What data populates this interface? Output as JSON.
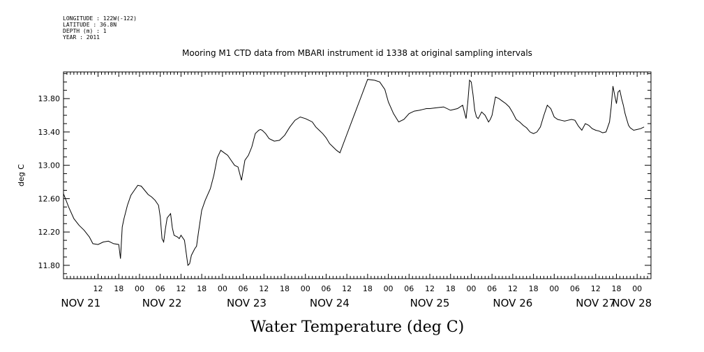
{
  "metadata": {
    "longitude": "LONGITUDE : 122W(-122)",
    "latitude": "LATITUDE : 36.8N",
    "depth": "DEPTH (m) : 1",
    "year": "YEAR : 2011"
  },
  "chart_data": {
    "type": "line",
    "title": "Mooring M1 CTD data from MBARI instrument id 1338 at original sampling intervals",
    "xlabel": "Water Temperature (deg C)",
    "ylabel": "deg C",
    "ylim": [
      11.64,
      14.12
    ],
    "xlim_hours_from_nov21_00": [
      2.0,
      172.0
    ],
    "yticks": [
      11.8,
      12.2,
      12.6,
      13.0,
      13.4,
      13.8
    ],
    "ytick_labels": [
      "11.80",
      "12.20",
      "12.60",
      "13.00",
      "13.40",
      "13.80"
    ],
    "xticks_hours": [
      12,
      18,
      24,
      30,
      36,
      42,
      48,
      54,
      60,
      66,
      72,
      78,
      84,
      90,
      96,
      102,
      108,
      114,
      120,
      126,
      132,
      138,
      144,
      150,
      156,
      162,
      168
    ],
    "xtick_labels": [
      "12",
      "18",
      "00",
      "06",
      "12",
      "18",
      "00",
      "06",
      "12",
      "18",
      "00",
      "06",
      "12",
      "18",
      "00",
      "06",
      "12",
      "18",
      "00",
      "06",
      "12",
      "18",
      "00",
      "06",
      "12",
      "18",
      "00"
    ],
    "date_labels": [
      "NOV 21",
      "NOV 22",
      "NOV 23",
      "NOV 24",
      "NOV 25",
      "NOV 26",
      "NOV 27",
      "NOV 28"
    ],
    "date_label_hours": [
      7,
      30.5,
      55,
      79,
      108,
      132,
      156,
      166.5
    ],
    "grid": false,
    "series": [
      {
        "x": [
          2.0,
          3.5,
          5.0,
          6.5,
          8.0,
          9.5,
          10.5,
          12.0,
          13.5,
          15.0,
          16.5,
          18.0,
          18.5,
          19.0,
          19.5,
          20.5,
          21.5,
          22.5,
          23.5,
          24.5,
          25.5,
          26.5,
          27.5,
          28.5,
          29.5,
          30.0,
          30.5,
          31.0,
          31.5,
          32.0,
          33.0,
          33.5,
          34.0,
          35.0,
          35.5,
          36.0,
          37.0,
          38.0,
          38.5,
          39.0,
          40.0,
          40.5,
          41.0,
          42.0,
          43.0,
          44.5,
          45.5,
          46.5,
          47.5,
          48.5,
          49.5,
          50.5,
          51.5,
          52.5,
          53.5,
          54.5,
          55.5,
          56.5,
          57.5,
          58.5,
          59.0,
          59.5,
          60.5,
          61.5,
          63.0,
          64.5,
          66.0,
          67.5,
          69.0,
          70.5,
          72.0,
          73.0,
          74.0,
          75.0,
          76.0,
          77.0,
          78.0,
          79.0,
          80.0,
          81.0,
          82.0,
          84.0,
          86.0,
          88.0,
          90.0,
          92.0,
          93.5,
          95.0,
          96.0,
          97.5,
          99.0,
          100.5,
          102.0,
          103.5,
          105.0,
          106.0,
          107.0,
          108.0,
          110.0,
          112.0,
          114.0,
          116.0,
          117.5,
          118.5,
          119.0,
          119.5,
          120.0,
          120.5,
          121.0,
          121.5,
          122.0,
          123.0,
          124.0,
          125.0,
          125.5,
          126.0,
          127.0,
          128.0,
          129.0,
          130.0,
          131.0,
          132.0,
          133.0,
          134.0,
          135.0,
          136.0,
          137.0,
          138.0,
          139.0,
          140.0,
          141.0,
          142.0,
          143.0,
          144.0,
          145.0,
          146.0,
          147.0,
          148.0,
          149.0,
          150.0,
          151.0,
          152.0,
          153.0,
          154.0,
          155.0,
          156.0,
          157.0,
          158.0,
          159.0,
          160.0,
          160.5,
          161.0,
          161.5,
          162.0,
          162.5,
          163.0,
          163.5,
          164.0,
          164.5,
          165.0,
          165.5,
          166.0,
          167.0,
          168.0,
          169.0,
          170.0
        ],
        "y": [
          12.66,
          12.5,
          12.36,
          12.28,
          12.22,
          12.14,
          12.06,
          12.05,
          12.08,
          12.09,
          12.06,
          12.05,
          11.88,
          12.26,
          12.36,
          12.52,
          12.64,
          12.7,
          12.76,
          12.75,
          12.7,
          12.65,
          12.62,
          12.58,
          12.52,
          12.38,
          12.12,
          12.08,
          12.24,
          12.37,
          12.42,
          12.25,
          12.16,
          12.14,
          12.12,
          12.16,
          12.1,
          11.8,
          11.82,
          11.92,
          12.0,
          12.03,
          12.18,
          12.46,
          12.58,
          12.72,
          12.88,
          13.09,
          13.18,
          13.15,
          13.12,
          13.06,
          13.0,
          12.98,
          12.82,
          13.06,
          13.12,
          13.22,
          13.38,
          13.42,
          13.43,
          13.42,
          13.38,
          13.32,
          13.29,
          13.3,
          13.36,
          13.46,
          13.54,
          13.58,
          13.56,
          13.54,
          13.52,
          13.46,
          13.42,
          13.38,
          13.33,
          13.26,
          13.22,
          13.18,
          13.15,
          13.37,
          13.59,
          13.81,
          14.03,
          14.02,
          14.0,
          13.91,
          13.76,
          13.62,
          13.52,
          13.55,
          13.62,
          13.65,
          13.66,
          13.67,
          13.68,
          13.68,
          13.69,
          13.7,
          13.66,
          13.68,
          13.72,
          13.56,
          13.76,
          14.02,
          14.0,
          13.85,
          13.66,
          13.58,
          13.56,
          13.64,
          13.6,
          13.52,
          13.55,
          13.6,
          13.82,
          13.8,
          13.77,
          13.74,
          13.7,
          13.63,
          13.55,
          13.52,
          13.48,
          13.45,
          13.4,
          13.38,
          13.4,
          13.46,
          13.6,
          13.72,
          13.68,
          13.58,
          13.55,
          13.54,
          13.53,
          13.54,
          13.55,
          13.54,
          13.47,
          13.42,
          13.5,
          13.48,
          13.44,
          13.42,
          13.41,
          13.39,
          13.4,
          13.52,
          13.7,
          13.95,
          13.84,
          13.74,
          13.88,
          13.9,
          13.8,
          13.72,
          13.62,
          13.55,
          13.48,
          13.45,
          13.42,
          13.43,
          13.44,
          13.46
        ]
      }
    ]
  }
}
